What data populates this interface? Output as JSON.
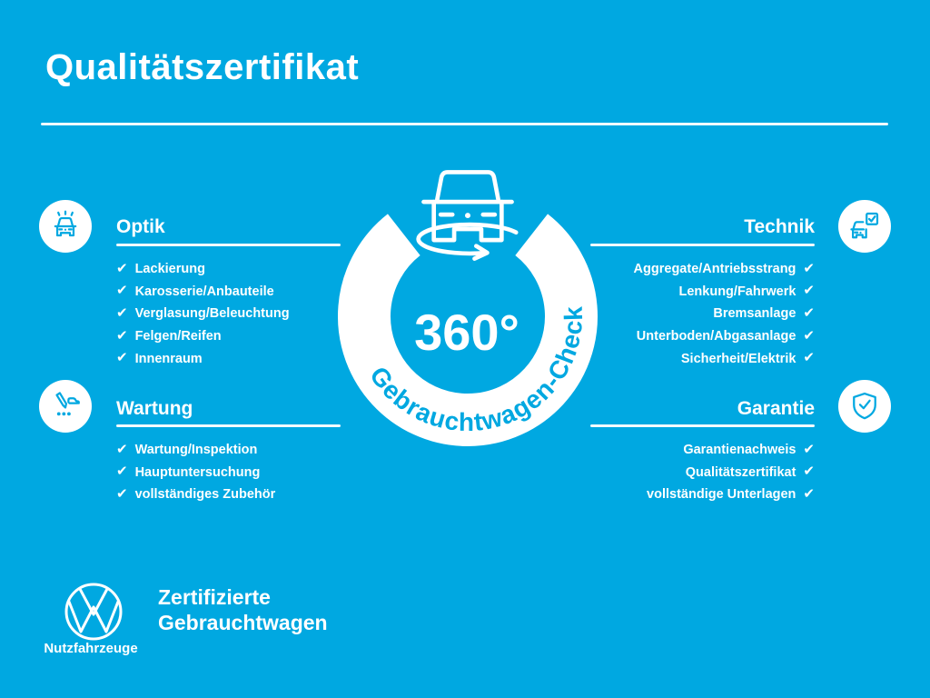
{
  "theme": {
    "background": "#00a8e1",
    "foreground": "#ffffff",
    "accent": "#00a8e1"
  },
  "checkmark": "✔",
  "title": "Qualitätszertifikat",
  "center": {
    "value": "360°",
    "ring_label": "Gebrauchtwagen-Check",
    "icon": "rotating-van-icon"
  },
  "sections": [
    {
      "id": "optik",
      "title": "Optik",
      "icon": "car-shine-icon",
      "align": "left",
      "items": [
        "Lackierung",
        "Karosserie/Anbauteile",
        "Verglasung/Beleuchtung",
        "Felgen/Reifen",
        "Innenraum"
      ]
    },
    {
      "id": "technik",
      "title": "Technik",
      "icon": "car-checkbox-icon",
      "align": "right",
      "items": [
        "Aggregate/Antriebsstrang",
        "Lenkung/Fahrwerk",
        "Bremsanlage",
        "Unterboden/Abgasanlage",
        "Sicherheit/Elektrik"
      ]
    },
    {
      "id": "wartung",
      "title": "Wartung",
      "icon": "pencil-service-icon",
      "align": "left",
      "items": [
        "Wartung/Inspektion",
        "Hauptuntersuchung",
        "vollständiges Zubehör"
      ]
    },
    {
      "id": "garantie",
      "title": "Garantie",
      "icon": "shield-check-icon",
      "align": "right",
      "items": [
        "Garantienachweis",
        "Qualitätszertifikat",
        "vollständige Unterlagen"
      ]
    }
  ],
  "footer": {
    "brand": "Nutzfahrzeuge",
    "tagline_line1": "Zertifizierte",
    "tagline_line2": "Gebrauchtwagen"
  }
}
